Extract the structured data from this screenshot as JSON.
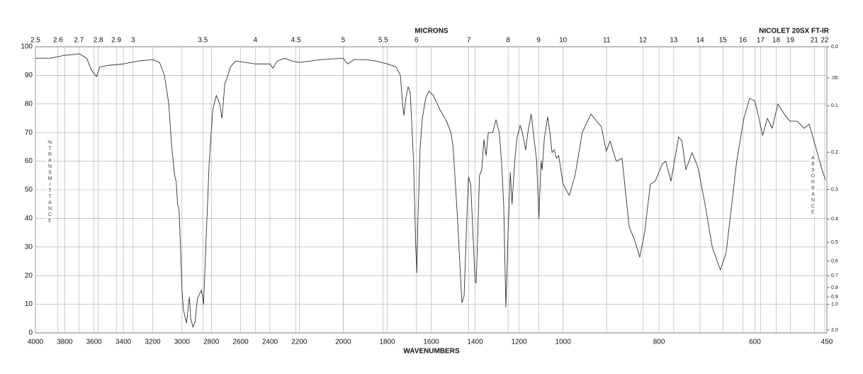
{
  "chart_data": {
    "type": "line",
    "title": "NICOLET 20SX FT-IR",
    "x_label": "WAVENUMBERS",
    "x2_label": "MICRONS",
    "y_label": "%TRANSMITTANCE",
    "y2_label": "ABSORBANCE",
    "xlim": [
      4000,
      450
    ],
    "ylim": [
      0,
      100
    ],
    "x_scale_breaks": [
      2200,
      1000
    ],
    "grid": true,
    "color": "#333333",
    "xticks": [
      4000,
      3800,
      3600,
      3400,
      3200,
      3000,
      2800,
      2600,
      2400,
      2200,
      2000,
      1800,
      1600,
      1400,
      1200,
      1000,
      800,
      600,
      450
    ],
    "x2ticks": [
      2.5,
      2.6,
      2.7,
      2.8,
      2.9,
      3,
      3.5,
      4,
      4.5,
      5,
      5.5,
      6,
      7,
      8,
      9,
      10,
      11,
      12,
      13,
      14,
      15,
      16,
      17,
      18,
      19,
      21,
      22
    ],
    "yticks": [
      0,
      10,
      20,
      30,
      40,
      50,
      60,
      70,
      80,
      90,
      100
    ],
    "y2ticks": [
      {
        "value": 0,
        "label": "0.0"
      },
      {
        "value": 0.05,
        "label": ".05"
      },
      {
        "value": 0.1,
        "label": "0.1"
      },
      {
        "value": 0.2,
        "label": "0.2"
      },
      0.3,
      0.4,
      0.5,
      0.6,
      0.7,
      0.8,
      0.9,
      {
        "value": 1,
        "label": "1.0"
      },
      {
        "value": 2,
        "label": "2.0"
      }
    ],
    "x": [
      4000,
      3900,
      3800,
      3700,
      3650,
      3620,
      3584,
      3560,
      3500,
      3400,
      3300,
      3200,
      3153,
      3120,
      3090,
      3070,
      3050,
      3040,
      3030,
      3020,
      3010,
      3000,
      2990,
      2969,
      2950,
      2940,
      2925,
      2910,
      2895,
      2867,
      2853,
      2814,
      2790,
      2766,
      2742,
      2727,
      2708,
      2693,
      2669,
      2635,
      2500,
      2400,
      2380,
      2350,
      2300,
      2250,
      2200,
      2100,
      2000,
      1980,
      1950,
      1900,
      1850,
      1800,
      1760,
      1740,
      1730,
      1724,
      1715,
      1705,
      1695,
      1680,
      1670,
      1665,
      1660,
      1650,
      1640,
      1625,
      1610,
      1590,
      1560,
      1530,
      1510,
      1500,
      1480,
      1470,
      1460,
      1450,
      1440,
      1430,
      1420,
      1410,
      1400,
      1395,
      1390,
      1380,
      1370,
      1360,
      1350,
      1340,
      1320,
      1305,
      1290,
      1280,
      1270,
      1260,
      1250,
      1240,
      1232,
      1220,
      1210,
      1195,
      1185,
      1170,
      1160,
      1145,
      1135,
      1120,
      1110,
      1100,
      1095,
      1085,
      1070,
      1060,
      1050,
      1040,
      1030,
      1020,
      1010,
      1000,
      987,
      975,
      960,
      942,
      920,
      910,
      902,
      889,
      877,
      862,
      852,
      840,
      830,
      818,
      808,
      793,
      786,
      775,
      759,
      752,
      744,
      731,
      719,
      704,
      689,
      672,
      660,
      638,
      623,
      611,
      600,
      589,
      584,
      574,
      564,
      552,
      537,
      527,
      512,
      497,
      487,
      475,
      460,
      453
    ],
    "values": [
      96,
      96,
      97,
      97.5,
      96,
      92,
      89.5,
      93,
      93.5,
      94,
      95,
      95.5,
      94.5,
      90,
      80,
      65,
      55,
      53,
      45,
      43,
      30,
      15,
      8,
      3.5,
      12.5,
      5,
      2,
      4,
      12,
      15,
      10,
      60,
      78,
      83,
      80,
      75,
      87,
      89,
      93,
      95,
      94,
      94,
      92.5,
      95,
      96,
      95,
      94.5,
      95.5,
      96,
      94,
      95.5,
      95.5,
      95,
      94,
      93,
      90,
      80,
      76,
      82,
      86,
      84,
      60,
      30,
      21,
      40,
      65,
      75,
      82,
      84.5,
      83,
      78,
      74,
      70,
      65,
      40,
      25,
      10.5,
      13,
      35,
      54.5,
      52,
      35,
      18,
      17.5,
      30,
      55,
      57,
      67.5,
      62,
      70,
      70,
      74.5,
      70,
      60,
      45,
      9,
      35,
      56,
      45,
      60,
      68,
      72.5,
      70,
      64,
      70,
      76.5,
      70,
      60,
      40,
      60,
      57,
      68,
      75.5,
      70,
      63,
      64,
      61,
      62,
      57,
      52,
      48,
      55,
      70,
      76.5,
      72,
      63.5,
      67,
      60,
      61,
      37,
      33,
      26.5,
      35,
      52,
      53,
      59,
      60,
      53,
      68.5,
      67,
      57,
      63,
      58,
      45,
      30,
      22,
      28,
      60,
      75,
      82,
      81,
      73,
      69,
      75,
      71.5,
      80,
      76,
      74,
      74,
      71.5,
      73,
      66,
      57,
      53.5
    ]
  }
}
